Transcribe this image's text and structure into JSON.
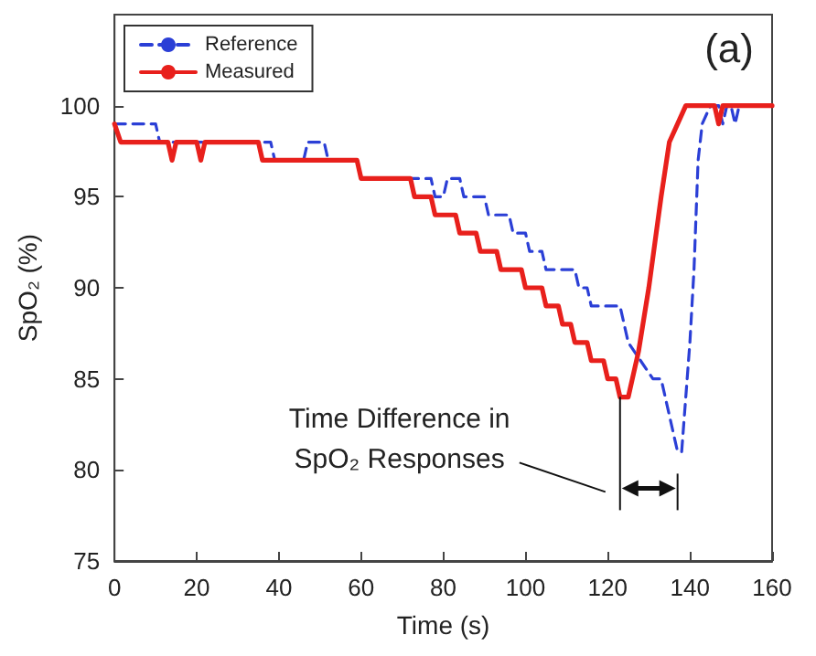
{
  "chart_data": {
    "type": "line",
    "xlabel": "Time (s)",
    "ylabel": "SpO₂ (%)",
    "xlim": [
      0,
      160
    ],
    "xticks": [
      0,
      20,
      40,
      60,
      80,
      100,
      120,
      140,
      160
    ],
    "ylim": [
      75,
      105
    ],
    "yticks": [
      75,
      80,
      85,
      90,
      95,
      100
    ],
    "grid": false,
    "legend": "top left",
    "marker": "none",
    "annotations": [
      "(a)",
      "Time Difference in\nSpO₂ Responses"
    ],
    "series": [
      {
        "name": "Reference",
        "color": "#2b3fd6",
        "line_style": "dashed",
        "x": [
          0,
          10,
          11,
          38,
          39,
          46,
          47,
          51,
          52,
          59,
          60,
          77,
          78,
          80,
          81,
          84,
          85,
          90,
          91,
          96,
          97,
          100,
          101,
          104,
          105,
          112,
          113,
          115,
          116,
          123,
          125,
          128,
          131,
          133,
          135,
          137,
          138,
          140,
          141,
          142,
          143,
          145,
          147,
          148,
          149,
          150,
          151,
          152,
          160
        ],
        "values": [
          99,
          99,
          98,
          98,
          97,
          97,
          98,
          98,
          97,
          97,
          96,
          96,
          95,
          95,
          96,
          96,
          95,
          95,
          94,
          94,
          93,
          93,
          92,
          92,
          91,
          91,
          90,
          90,
          89,
          89,
          87,
          86,
          85,
          85,
          83,
          81,
          81,
          87,
          91,
          97,
          99,
          100,
          100,
          99,
          100,
          100,
          99,
          100,
          100
        ]
      },
      {
        "name": "Measured",
        "color": "#e8201c",
        "line_style": "solid",
        "x": [
          0,
          1.5,
          13,
          14,
          15,
          20,
          21,
          22,
          35,
          36,
          59,
          60,
          72,
          73,
          77,
          78,
          83,
          84,
          88,
          89,
          93,
          94,
          99,
          100,
          104,
          105,
          108,
          109,
          111,
          112,
          115,
          116,
          119,
          120,
          122,
          123,
          125,
          127.5,
          130,
          133,
          135,
          137,
          139,
          146,
          147,
          148,
          160
        ],
        "values": [
          99,
          98,
          98,
          97,
          98,
          98,
          97,
          98,
          98,
          97,
          97,
          96,
          96,
          95,
          95,
          94,
          94,
          93,
          93,
          92,
          92,
          91,
          91,
          90,
          90,
          89,
          89,
          88,
          88,
          87,
          87,
          86,
          86,
          85,
          85,
          84,
          84,
          86.5,
          90,
          95,
          98,
          99,
          100,
          100,
          99,
          100,
          100
        ]
      }
    ]
  }
}
